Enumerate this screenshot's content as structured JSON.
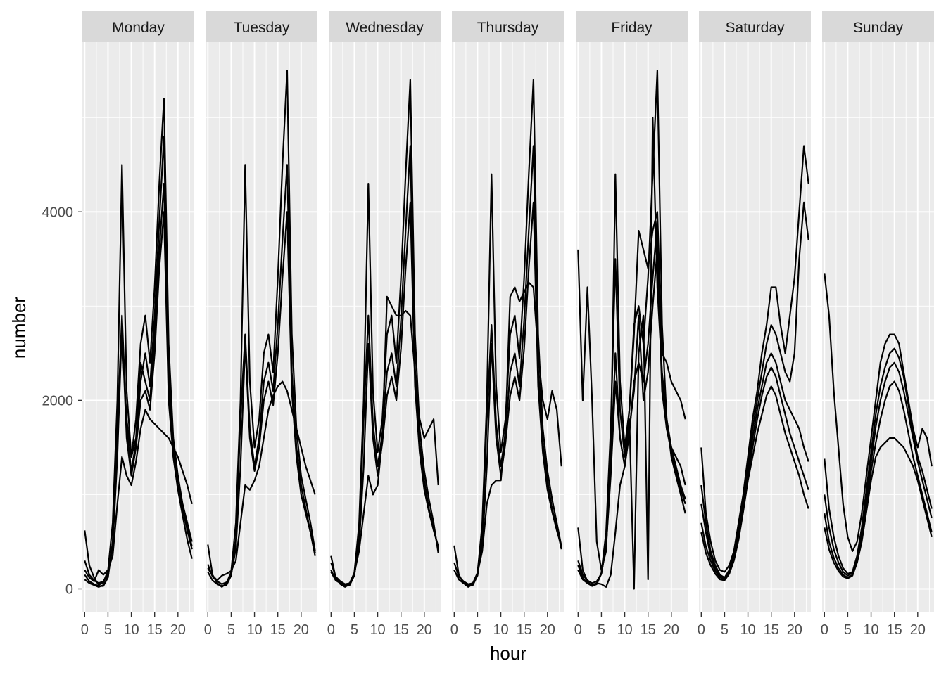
{
  "chart_data": {
    "type": "line",
    "facet_by": "weekday",
    "xlabel": "hour",
    "ylabel": "number",
    "xlim": [
      -0.5,
      23.5
    ],
    "ylim": [
      -250,
      5800
    ],
    "x_ticks": [
      0,
      5,
      10,
      15,
      20
    ],
    "y_ticks": [
      0,
      2000,
      4000
    ],
    "line_color": "#000000",
    "panel_background": "#ebebeb",
    "strip_background": "#d9d9d9",
    "grid": true,
    "legend": "none",
    "facets": [
      {
        "label": "Monday",
        "series": [
          {
            "values": [
              620,
              250,
              120,
              40,
              70,
              190,
              700,
              2000,
              4500,
              2100,
              1400,
              1800,
              2600,
              2900,
              2400,
              3200,
              4300,
              5200,
              2600,
              1600,
              1200,
              900,
              650,
              450
            ]
          },
          {
            "values": [
              150,
              80,
              50,
              30,
              30,
              120,
              500,
              1800,
              2700,
              1800,
              1400,
              1600,
              2400,
              2200,
              2000,
              2700,
              3600,
              4300,
              2200,
              1500,
              1100,
              900,
              700,
              500
            ]
          },
          {
            "values": [
              300,
              150,
              90,
              60,
              80,
              150,
              450,
              1400,
              2800,
              1600,
              1200,
              1500,
              2000,
              2100,
              1900,
              2500,
              3400,
              4000,
              2000,
              1400,
              1050,
              850,
              620,
              420
            ]
          },
          {
            "values": [
              200,
              120,
              80,
              200,
              150,
              200,
              350,
              900,
              1400,
              1200,
              1100,
              1350,
              1700,
              1900,
              1800,
              1750,
              1700,
              1650,
              1600,
              1500,
              1400,
              1250,
              1100,
              900
            ]
          },
          {
            "values": [
              100,
              60,
              40,
              20,
              40,
              130,
              480,
              1700,
              2900,
              1700,
              1250,
              1550,
              2200,
              2500,
              2150,
              2900,
              3900,
              4800,
              2400,
              1450,
              1050,
              780,
              520,
              320
            ]
          }
        ]
      },
      {
        "label": "Tuesday",
        "series": [
          {
            "values": [
              470,
              150,
              60,
              20,
              60,
              180,
              700,
              2000,
              4500,
              2200,
              1500,
              1800,
              2500,
              2700,
              2300,
              3300,
              4500,
              5500,
              2700,
              1700,
              1200,
              950,
              700,
              400
            ]
          },
          {
            "values": [
              180,
              90,
              50,
              30,
              40,
              140,
              520,
              1800,
              2700,
              1700,
              1300,
              1600,
              2200,
              2400,
              2100,
              2800,
              3700,
              4500,
              2300,
              1500,
              1100,
              850,
              600,
              350
            ]
          },
          {
            "values": [
              260,
              130,
              80,
              50,
              70,
              150,
              430,
              1300,
              2600,
              1600,
              1250,
              1500,
              2000,
              2200,
              1950,
              2500,
              3300,
              4000,
              2100,
              1400,
              1000,
              800,
              600,
              380
            ]
          },
          {
            "values": [
              220,
              140,
              90,
              140,
              160,
              190,
              300,
              700,
              1100,
              1050,
              1150,
              1300,
              1600,
              1900,
              2050,
              2150,
              2200,
              2100,
              1900,
              1700,
              1500,
              1300,
              1150,
              1000
            ]
          }
        ]
      },
      {
        "label": "Wednesday",
        "series": [
          {
            "values": [
              350,
              120,
              50,
              20,
              50,
              170,
              680,
              2000,
              4300,
              2100,
              1450,
              1800,
              2700,
              2900,
              2400,
              3300,
              4400,
              5400,
              2700,
              1700,
              1250,
              950,
              700,
              380
            ]
          },
          {
            "values": [
              200,
              100,
              60,
              30,
              40,
              140,
              520,
              1800,
              2900,
              1750,
              1300,
              1650,
              2300,
              2500,
              2150,
              2850,
              3800,
              4700,
              2350,
              1550,
              1150,
              850,
              650,
              420
            ]
          },
          {
            "values": [
              280,
              130,
              80,
              50,
              60,
              150,
              450,
              1300,
              2600,
              1600,
              1200,
              1550,
              2050,
              2250,
              2000,
              2550,
              3400,
              4100,
              2150,
              1450,
              1050,
              820,
              620,
              450
            ]
          },
          {
            "values": [
              180,
              90,
              60,
              40,
              60,
              170,
              400,
              800,
              1200,
              1000,
              1100,
              1600,
              3100,
              3000,
              2900,
              2900,
              2950,
              2900,
              2300,
              1800,
              1600,
              1700,
              1800,
              1100
            ]
          }
        ]
      },
      {
        "label": "Thursday",
        "series": [
          {
            "values": [
              460,
              150,
              60,
              20,
              50,
              170,
              680,
              2000,
              4400,
              2150,
              1450,
              1800,
              2700,
              2900,
              2450,
              3300,
              4400,
              5400,
              2700,
              1700,
              1250,
              950,
              700,
              450
            ]
          },
          {
            "values": [
              200,
              100,
              60,
              30,
              40,
              140,
              520,
              1800,
              2800,
              1750,
              1300,
              1650,
              2300,
              2500,
              2150,
              2850,
              3800,
              4700,
              2350,
              1550,
              1150,
              850,
              650,
              420
            ]
          },
          {
            "values": [
              280,
              130,
              80,
              50,
              60,
              150,
              450,
              1300,
              2600,
              1600,
              1200,
              1550,
              2050,
              2250,
              2000,
              2550,
              3400,
              4100,
              2150,
              1450,
              1050,
              820,
              620,
              450
            ]
          },
          {
            "values": [
              200,
              100,
              60,
              40,
              60,
              170,
              400,
              900,
              1100,
              1150,
              1150,
              1700,
              3100,
              3200,
              3050,
              3150,
              3250,
              3200,
              2500,
              2000,
              1800,
              2100,
              1900,
              1300
            ]
          }
        ]
      },
      {
        "label": "Friday",
        "series": [
          {
            "values": [
              3600,
              2000,
              3200,
              2000,
              500,
              200,
              400,
              1400,
              4400,
              2200,
              1500,
              1900,
              2800,
              3000,
              2600,
              3300,
              4400,
              5500,
              2800,
              1800,
              1400,
              1200,
              1000,
              800
            ]
          },
          {
            "values": [
              650,
              200,
              80,
              30,
              60,
              170,
              600,
              1700,
              3500,
              1900,
              1400,
              1900,
              2700,
              3800,
              3600,
              3400,
              3800,
              4000,
              2500,
              2400,
              2200,
              2100,
              2000,
              1800
            ]
          },
          {
            "values": [
              300,
              150,
              90,
              60,
              80,
              160,
              450,
              1300,
              2500,
              1600,
              1300,
              1650,
              2200,
              2400,
              2200,
              2600,
              3300,
              3900,
              2200,
              1700,
              1450,
              1250,
              1050,
              900
            ]
          },
          {
            "values": [
              250,
              120,
              60,
              30,
              50,
              160,
              450,
              1200,
              2200,
              1600,
              1300,
              1700,
              2100,
              2900,
              2000,
              2300,
              3000,
              3600,
              2100,
              1700,
              1500,
              1400,
              1300,
              1100
            ]
          },
          {
            "values": [
              200,
              100,
              60,
              40,
              60,
              50,
              20,
              150,
              600,
              1100,
              1300,
              1800,
              0,
              2500,
              2900,
              100,
              5000,
              3200,
              2300,
              1800,
              1500,
              1300,
              1100,
              950
            ]
          }
        ]
      },
      {
        "label": "Saturday",
        "series": [
          {
            "values": [
              1500,
              800,
              500,
              300,
              200,
              180,
              250,
              400,
              700,
              1000,
              1400,
              1800,
              2100,
              2500,
              2800,
              3200,
              3200,
              2800,
              2500,
              2900,
              3300,
              4000,
              4700,
              4300
            ]
          },
          {
            "values": [
              1100,
              700,
              400,
              250,
              150,
              120,
              200,
              380,
              650,
              950,
              1300,
              1700,
              2000,
              2300,
              2600,
              2800,
              2700,
              2500,
              2300,
              2200,
              2500,
              3500,
              4100,
              3700
            ]
          },
          {
            "values": [
              900,
              600,
              350,
              220,
              140,
              110,
              180,
              350,
              600,
              900,
              1250,
              1600,
              1900,
              2150,
              2400,
              2500,
              2400,
              2200,
              2000,
              1900,
              1800,
              1700,
              1500,
              1350
            ]
          },
          {
            "values": [
              700,
              450,
              300,
              190,
              120,
              100,
              170,
              330,
              570,
              860,
              1200,
              1500,
              1800,
              2050,
              2250,
              2350,
              2250,
              2050,
              1850,
              1650,
              1500,
              1350,
              1200,
              1050
            ]
          },
          {
            "values": [
              600,
              380,
              250,
              160,
              100,
              90,
              160,
              300,
              520,
              820,
              1150,
              1400,
              1650,
              1850,
              2050,
              2150,
              2050,
              1850,
              1650,
              1500,
              1350,
              1200,
              1000,
              850
            ]
          }
        ]
      },
      {
        "label": "Sunday",
        "series": [
          {
            "values": [
              3350,
              2900,
              2100,
              1500,
              900,
              550,
              400,
              500,
              800,
              1200,
              1600,
              2000,
              2400,
              2600,
              2700,
              2700,
              2600,
              2300,
              2000,
              1700,
              1500,
              1700,
              1600,
              1300
            ]
          },
          {
            "values": [
              1380,
              850,
              550,
              350,
              220,
              160,
              180,
              350,
              650,
              1050,
              1450,
              1850,
              2150,
              2350,
              2500,
              2550,
              2450,
              2250,
              1950,
              1650,
              1400,
              1250,
              1050,
              850
            ]
          },
          {
            "values": [
              1000,
              650,
              420,
              280,
              180,
              140,
              170,
              330,
              600,
              980,
              1350,
              1720,
              2000,
              2200,
              2350,
              2400,
              2300,
              2100,
              1850,
              1600,
              1350,
              1150,
              950,
              750
            ]
          },
          {
            "values": [
              800,
              500,
              330,
              220,
              150,
              120,
              150,
              300,
              550,
              900,
              1250,
              1550,
              1800,
              2000,
              2150,
              2200,
              2100,
              1900,
              1650,
              1400,
              1200,
              1000,
              800,
              600
            ]
          },
          {
            "values": [
              650,
              420,
              280,
              190,
              130,
              110,
              140,
              280,
              500,
              820,
              1150,
              1400,
              1500,
              1550,
              1600,
              1600,
              1550,
              1500,
              1400,
              1300,
              1150,
              950,
              750,
              550
            ]
          }
        ]
      }
    ]
  }
}
